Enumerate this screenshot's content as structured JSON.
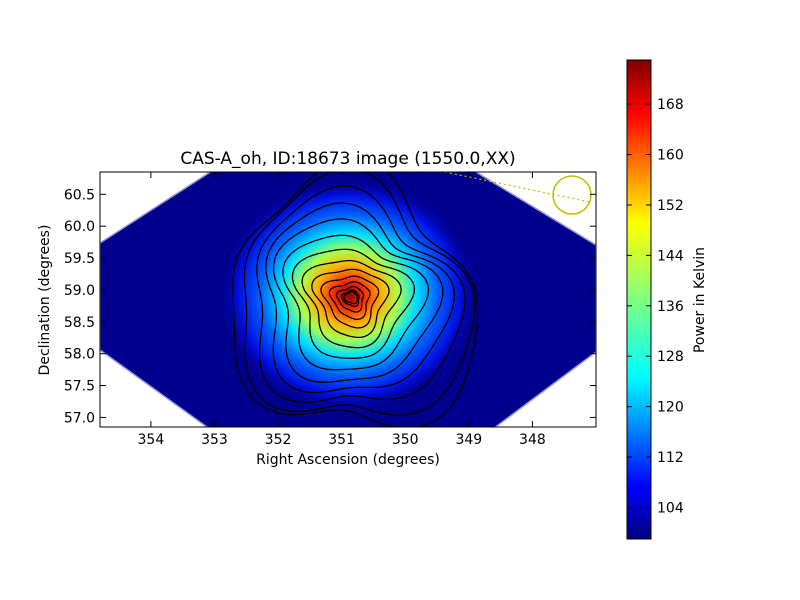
{
  "chart_data": {
    "type": "heatmap",
    "title": "CAS-A_oh, ID:18673 image (1550.0,XX)",
    "xlabel": "Right Ascension (degrees)",
    "ylabel": "Declination (degrees)",
    "x_reversed": true,
    "xlim": [
      354.8,
      347.0
    ],
    "ylim": [
      56.85,
      60.85
    ],
    "x_ticks": [
      354,
      353,
      352,
      351,
      350,
      349,
      348
    ],
    "y_ticks": [
      57.0,
      57.5,
      58.0,
      58.5,
      59.0,
      59.5,
      60.0,
      60.5
    ],
    "y_tick_labels": [
      "57.0",
      "57.5",
      "58.0",
      "58.5",
      "59.0",
      "59.5",
      "60.0",
      "60.5"
    ],
    "colormap": "jet",
    "colorbar": {
      "label": "Power in Kelvin",
      "range": [
        99,
        175
      ],
      "ticks": [
        104,
        112,
        120,
        128,
        136,
        144,
        152,
        160,
        168
      ]
    },
    "source": {
      "ra": 350.85,
      "dec": 58.88,
      "peak_kelvin": 174,
      "background_kelvin": 100
    },
    "contour_levels_kelvin": [
      102,
      105,
      110,
      115,
      120,
      126,
      132,
      138,
      144,
      150,
      156,
      162,
      168,
      172
    ],
    "beam_marker": {
      "ra": 347.4,
      "dec": 60.45,
      "color": "#bfbf00"
    },
    "grid": false
  }
}
